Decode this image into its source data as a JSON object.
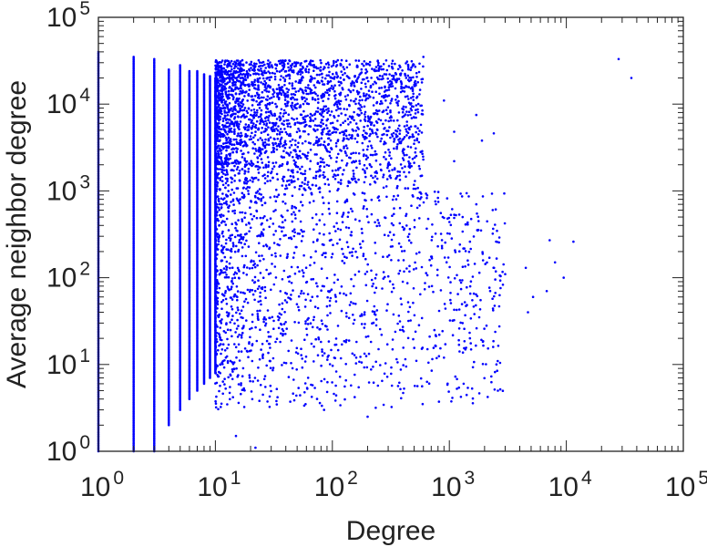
{
  "chart_data": {
    "type": "scatter",
    "xlabel": "Degree",
    "ylabel": "Average neighbor degree",
    "xscale": "log",
    "yscale": "log",
    "xlim": [
      1,
      100000
    ],
    "ylim": [
      1,
      100000
    ],
    "x_ticks": [
      {
        "base": "10",
        "exp": "0"
      },
      {
        "base": "10",
        "exp": "1"
      },
      {
        "base": "10",
        "exp": "2"
      },
      {
        "base": "10",
        "exp": "3"
      },
      {
        "base": "10",
        "exp": "4"
      },
      {
        "base": "10",
        "exp": "5"
      }
    ],
    "y_ticks": [
      {
        "base": "10",
        "exp": "0"
      },
      {
        "base": "10",
        "exp": "1"
      },
      {
        "base": "10",
        "exp": "2"
      },
      {
        "base": "10",
        "exp": "3"
      },
      {
        "base": "10",
        "exp": "4"
      },
      {
        "base": "10",
        "exp": "5"
      }
    ],
    "marker_color": "#0000ff",
    "grid": false,
    "legend": "none",
    "columns": [
      {
        "x": 1,
        "y_range": [
          1,
          40000
        ]
      },
      {
        "x": 2,
        "y_range": [
          1,
          35000
        ]
      },
      {
        "x": 3,
        "y_range": [
          1,
          33000
        ]
      },
      {
        "x": 4,
        "y_range": [
          2,
          25000
        ]
      },
      {
        "x": 5,
        "y_range": [
          3,
          28000
        ]
      },
      {
        "x": 6,
        "y_range": [
          4,
          24000
        ]
      },
      {
        "x": 7,
        "y_range": [
          5,
          24000
        ]
      },
      {
        "x": 8,
        "y_range": [
          6,
          22000
        ]
      },
      {
        "x": 9,
        "y_range": [
          7,
          21000
        ]
      },
      {
        "x": 10,
        "y_range": [
          8,
          20000
        ]
      }
    ],
    "cluster": {
      "x_range": [
        10,
        600
      ],
      "y_range": [
        1000,
        32000
      ],
      "density": "high"
    },
    "spread": {
      "x_range": [
        10,
        3000
      ],
      "y_range": [
        3,
        1000
      ],
      "density": "medium"
    },
    "points": [
      {
        "x": 17,
        "y": 32000
      },
      {
        "x": 25,
        "y": 30000
      },
      {
        "x": 45,
        "y": 28000
      },
      {
        "x": 120,
        "y": 32000
      },
      {
        "x": 600,
        "y": 35000
      },
      {
        "x": 28000,
        "y": 33000
      },
      {
        "x": 36000,
        "y": 20000
      },
      {
        "x": 900,
        "y": 11000
      },
      {
        "x": 1700,
        "y": 7500
      },
      {
        "x": 1100,
        "y": 4800
      },
      {
        "x": 1900,
        "y": 3800
      },
      {
        "x": 2400,
        "y": 4600
      },
      {
        "x": 1100,
        "y": 2200
      },
      {
        "x": 1300,
        "y": 500
      },
      {
        "x": 1700,
        "y": 700
      },
      {
        "x": 850,
        "y": 320
      },
      {
        "x": 1500,
        "y": 260
      },
      {
        "x": 2200,
        "y": 170
      },
      {
        "x": 3000,
        "y": 110
      },
      {
        "x": 4500,
        "y": 130
      },
      {
        "x": 5200,
        "y": 60
      },
      {
        "x": 7200,
        "y": 270
      },
      {
        "x": 8000,
        "y": 150
      },
      {
        "x": 9500,
        "y": 100
      },
      {
        "x": 11500,
        "y": 260
      },
      {
        "x": 6800,
        "y": 70
      },
      {
        "x": 4700,
        "y": 40
      },
      {
        "x": 1800,
        "y": 35
      },
      {
        "x": 2600,
        "y": 5
      },
      {
        "x": 650,
        "y": 15
      },
      {
        "x": 900,
        "y": 12
      },
      {
        "x": 1300,
        "y": 30
      },
      {
        "x": 400,
        "y": 90
      },
      {
        "x": 380,
        "y": 25
      },
      {
        "x": 160,
        "y": 12
      },
      {
        "x": 200,
        "y": 2.5
      },
      {
        "x": 85,
        "y": 3
      },
      {
        "x": 22,
        "y": 1.1
      },
      {
        "x": 15,
        "y": 1.5
      }
    ]
  }
}
